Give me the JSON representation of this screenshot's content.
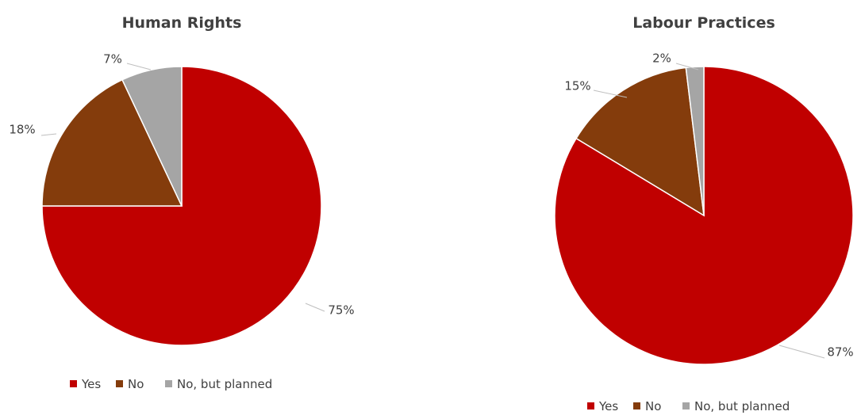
{
  "colors": {
    "Yes": "#c00000",
    "No": "#843c0c",
    "No, but planned": "#a5a5a5"
  },
  "chart_data": [
    {
      "type": "pie",
      "title": "Human Rights",
      "categories": [
        "Yes",
        "No",
        "No, but planned"
      ],
      "values": [
        75,
        18,
        7
      ],
      "labels": [
        "75%",
        "18%",
        "7%"
      ],
      "legend": "bottom"
    },
    {
      "type": "pie",
      "title": "Labour Practices",
      "categories": [
        "Yes",
        "No",
        "No, but planned"
      ],
      "values": [
        87,
        15,
        2
      ],
      "labels": [
        "87%",
        "15%",
        "2%"
      ],
      "legend": "bottom"
    }
  ]
}
